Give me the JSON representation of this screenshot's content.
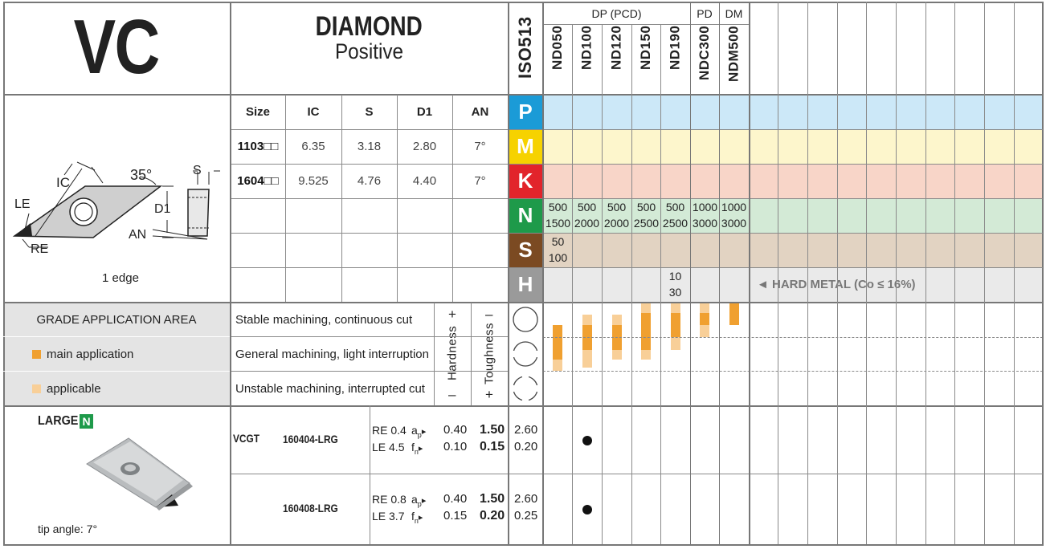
{
  "header": {
    "code": "VC",
    "material_title": "DIAMOND",
    "material_subtitle": "Positive",
    "iso_label": "ISO513",
    "group_dp": "DP (PCD)",
    "group_pd": "PD",
    "group_dm": "DM",
    "grades": [
      "ND050",
      "ND100",
      "ND120",
      "ND150",
      "ND190",
      "NDC300",
      "NDM500"
    ]
  },
  "diagram": {
    "labels": {
      "ic": "IC",
      "angle": "35°",
      "s": "S",
      "le": "LE",
      "d1": "D1",
      "an": "AN",
      "re": "RE"
    },
    "edges": "1 edge"
  },
  "dim_table": {
    "headers": [
      "Size",
      "IC",
      "S",
      "D1",
      "AN"
    ],
    "rows": [
      [
        "1103□□",
        "6.35",
        "3.18",
        "2.80",
        "7°"
      ],
      [
        "1604□□",
        "9.525",
        "4.76",
        "4.40",
        "7°"
      ]
    ]
  },
  "iso_groups": [
    {
      "letter": "P",
      "color": "#1b9bd7",
      "band": "#cce8f8"
    },
    {
      "letter": "M",
      "color": "#f6d200",
      "band": "#fdf6cc"
    },
    {
      "letter": "K",
      "color": "#e2242b",
      "band": "#f8d5c8"
    },
    {
      "letter": "N",
      "color": "#1e9a4a",
      "band": "#d3ead6"
    },
    {
      "letter": "S",
      "color": "#7b4a22",
      "band": "#e2d3c2"
    },
    {
      "letter": "H",
      "color": "#9a9a9a",
      "band": "#eaeaea"
    }
  ],
  "speeds": {
    "N": [
      [
        "500",
        "1500"
      ],
      [
        "500",
        "2000"
      ],
      [
        "500",
        "2000"
      ],
      [
        "500",
        "2500"
      ],
      [
        "500",
        "2500"
      ],
      [
        "1000",
        "3000"
      ],
      [
        "1000",
        "3000"
      ]
    ],
    "S": [
      [
        "50",
        "100"
      ],
      [
        "",
        ""
      ],
      [
        "",
        ""
      ],
      [
        "",
        ""
      ],
      [
        "",
        ""
      ],
      [
        "",
        ""
      ],
      [
        "",
        ""
      ]
    ],
    "H": [
      [
        "",
        ""
      ],
      [
        "",
        ""
      ],
      [
        "",
        ""
      ],
      [
        "",
        ""
      ],
      [
        "10",
        "30"
      ],
      [
        "",
        ""
      ],
      [
        "",
        ""
      ]
    ]
  },
  "hard_metal_note": "◄ HARD METAL (Co ≤ 16%)",
  "application": {
    "title": "GRADE APPLICATION AREA",
    "legend_main": "main application",
    "legend_applicable": "applicable",
    "conditions": [
      "Stable machining, continuous cut",
      "General machining, light interruption",
      "Unstable machining, interrupted cut"
    ],
    "hardness": "Hardness",
    "toughness": "Toughness",
    "plus": "+",
    "minus": "–"
  },
  "insert": {
    "chipbreaker": "LARGE",
    "badge": "N",
    "tip_angle": "tip angle: 7°",
    "family": "VCGT",
    "rows": [
      {
        "code": "160404-LRG",
        "re": "RE 0.4",
        "le": "LE 4.5",
        "ap": [
          "0.40",
          "1.50",
          "2.60"
        ],
        "fn": [
          "0.10",
          "0.15",
          "0.20"
        ],
        "grade_dot": "ND100"
      },
      {
        "code": "160408-LRG",
        "re": "RE 0.8",
        "le": "LE 3.7",
        "ap": [
          "0.40",
          "1.50",
          "2.60"
        ],
        "fn": [
          "0.15",
          "0.20",
          "0.25"
        ],
        "grade_dot": "ND100"
      }
    ],
    "ap_label": "a",
    "ap_sub": "p",
    "fn_label": "f",
    "fn_sub": "n",
    "arrow": "▸"
  }
}
